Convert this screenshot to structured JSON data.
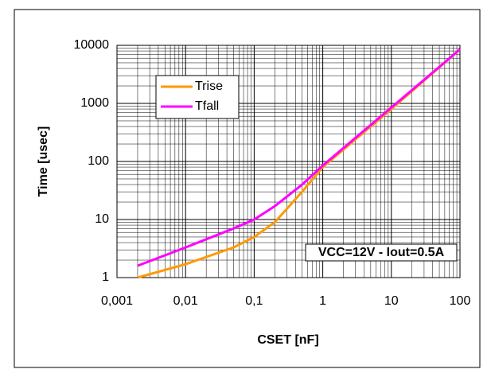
{
  "chart_data": {
    "type": "line",
    "x_label": "CSET [nF]",
    "y_label": "Time [usec]",
    "annotation": "VCC=12V - Iout=0.5A",
    "log_x": true,
    "log_y": true,
    "grid": true,
    "minor_grid": true,
    "legend": "upper left",
    "xlim": [
      0.001,
      100
    ],
    "ylim": [
      1,
      10000
    ],
    "xticks": [
      {
        "value": 0.001,
        "label": "0,001"
      },
      {
        "value": 0.01,
        "label": "0,01"
      },
      {
        "value": 0.1,
        "label": "0,1"
      },
      1,
      10,
      100
    ],
    "yticks": [
      1,
      10,
      100,
      1000,
      10000
    ],
    "series": [
      {
        "name": "Trise",
        "color": "#ff9900",
        "x": [
          0.002,
          0.01,
          0.05,
          0.1,
          0.2,
          0.5,
          1,
          10,
          100
        ],
        "values": [
          1,
          1.7,
          3.3,
          5,
          9,
          30,
          80,
          800,
          8500
        ]
      },
      {
        "name": "Tfall",
        "color": "#ff00ff",
        "x": [
          0.002,
          0.01,
          0.05,
          0.1,
          0.2,
          0.5,
          1,
          10,
          100
        ],
        "values": [
          1.6,
          3.3,
          7,
          10,
          17,
          40,
          85,
          850,
          8500
        ]
      }
    ]
  }
}
